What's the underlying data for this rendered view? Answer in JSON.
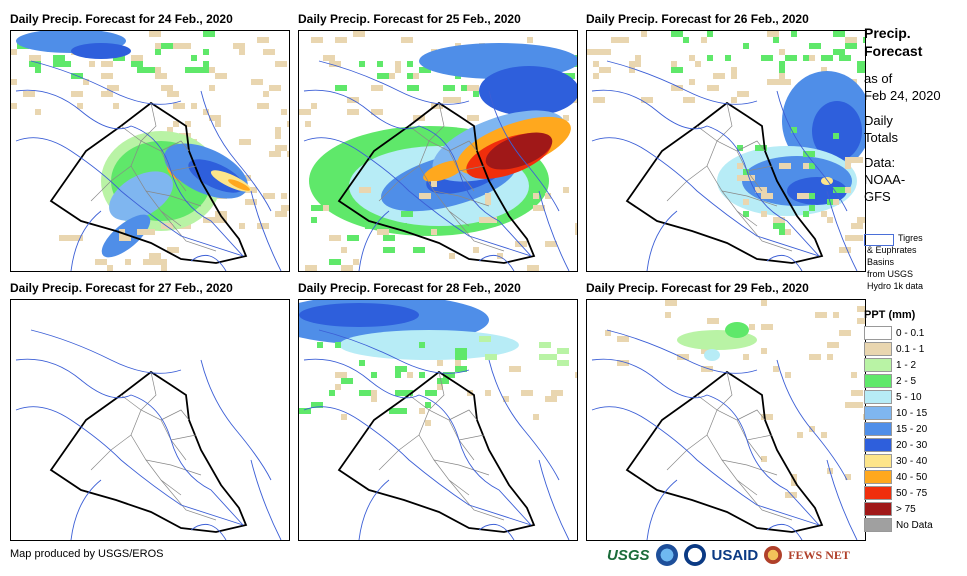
{
  "panels": [
    {
      "title": "Daily Precip. Forecast for 24 Feb., 2020"
    },
    {
      "title": "Daily Precip. Forecast for 25 Feb., 2020"
    },
    {
      "title": "Daily Precip. Forecast for 26 Feb., 2020"
    },
    {
      "title": "Daily Precip. Forecast for 27 Feb., 2020"
    },
    {
      "title": "Daily Precip. Forecast for 28 Feb., 2020"
    },
    {
      "title": "Daily Precip. Forecast for 29 Feb., 2020"
    }
  ],
  "sidebar": {
    "title1": "Precip.",
    "title2": "Forecast",
    "asof1": "as of",
    "asof2": "Feb 24, 2020",
    "daily1": "Daily",
    "daily2": "Totals",
    "data1": "Data:",
    "data2": "NOAA-",
    "data3": "GFS"
  },
  "basin_legend": {
    "line1": "Tigres",
    "line2": "& Euphrates",
    "line3": "Basins",
    "line4": "from USGS",
    "line5": "Hydro 1k data"
  },
  "ppt_legend": {
    "header": "PPT (mm)",
    "items": [
      {
        "label": "0 - 0.1",
        "color": "#ffffff"
      },
      {
        "label": "0.1 - 1",
        "color": "#e9d6b0"
      },
      {
        "label": "1 - 2",
        "color": "#b9f3a5"
      },
      {
        "label": "2 - 5",
        "color": "#5fe86a"
      },
      {
        "label": "5 - 10",
        "color": "#b7ecf6"
      },
      {
        "label": "10 - 15",
        "color": "#7fb6f0"
      },
      {
        "label": "15 - 20",
        "color": "#4f8ee8"
      },
      {
        "label": "20 - 30",
        "color": "#2e5fdc"
      },
      {
        "label": "30 - 40",
        "color": "#fde58a"
      },
      {
        "label": "40 - 50",
        "color": "#ffa81e"
      },
      {
        "label": "50 - 75",
        "color": "#f02e0c"
      },
      {
        "label": "> 75",
        "color": "#a01818"
      },
      {
        "label": "No Data",
        "color": "#a0a0a0"
      }
    ]
  },
  "footer": {
    "text": "Map produced by USGS/EROS"
  },
  "logos": {
    "usgs": "USGS",
    "usaid": "USAID",
    "fews": "FEWS NET"
  }
}
